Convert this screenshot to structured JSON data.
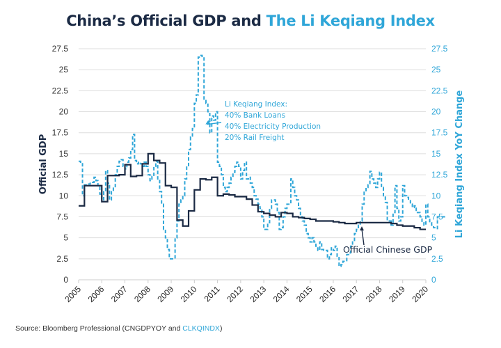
{
  "title": {
    "part1": "China’s Official GDP and ",
    "part2": "The Li Keqiang Index"
  },
  "source": {
    "prefix": "Source: Bloomberg Professional (CNGDPYOY and ",
    "highlight": "CLKQINDX",
    "suffix": ")"
  },
  "colors": {
    "gdp": "#1b2a44",
    "lki": "#2fa6d8",
    "grid": "#dddddd"
  },
  "chart_data": {
    "type": "line",
    "title": "China’s Official GDP and The Li Keqiang Index",
    "xlabel": "",
    "ylabel": "Official GDP",
    "ylabel_right": "Li Keqiang Index YoY Change",
    "xlim": [
      2005,
      2020
    ],
    "ylim": [
      0,
      27.5
    ],
    "ylim_right": [
      0,
      27.5
    ],
    "grid": true,
    "x_ticks": [
      "2005",
      "2006",
      "2007",
      "2008",
      "2009",
      "2010",
      "2011",
      "2012",
      "2013",
      "2014",
      "2015",
      "2016",
      "2017",
      "2018",
      "2019",
      "2020"
    ],
    "y_ticks": [
      "0",
      "2.5",
      "5",
      "7.5",
      "10",
      "12.5",
      "15",
      "17.5",
      "20",
      "22.5",
      "25",
      "27.5"
    ],
    "y_ticks_right": [
      "0",
      "2.5",
      "5",
      "7.5",
      "10",
      "12.5",
      "15",
      "17.5",
      "20",
      "22.5",
      "25",
      "27.5"
    ],
    "annotations": [
      {
        "id": "lki",
        "lines": [
          "Li Keqiang Index:",
          "40% Bank Loans",
          "40% Electricity Production",
          "20% Rail Freight"
        ],
        "points_to": [
          2010.3,
          18.5
        ]
      },
      {
        "id": "gdp",
        "lines": [
          "Official Chinese GDP"
        ],
        "points_to": [
          2016.5,
          6.7
        ]
      }
    ],
    "series": [
      {
        "name": "Official GDP",
        "style": "solid-step",
        "axis": "left",
        "x": [
          2005.0,
          2005.25,
          2005.5,
          2005.75,
          2006.0,
          2006.25,
          2006.5,
          2006.75,
          2007.0,
          2007.25,
          2007.5,
          2007.75,
          2008.0,
          2008.25,
          2008.5,
          2008.75,
          2009.0,
          2009.25,
          2009.5,
          2009.75,
          2010.0,
          2010.25,
          2010.5,
          2010.75,
          2011.0,
          2011.25,
          2011.5,
          2011.75,
          2012.0,
          2012.25,
          2012.5,
          2012.75,
          2013.0,
          2013.25,
          2013.5,
          2013.75,
          2014.0,
          2014.25,
          2014.5,
          2014.75,
          2015.0,
          2015.25,
          2015.5,
          2015.75,
          2016.0,
          2016.25,
          2016.5,
          2016.75,
          2017.0,
          2017.25,
          2017.5,
          2017.75,
          2018.0,
          2018.25,
          2018.5,
          2018.75,
          2019.0,
          2019.25,
          2019.5,
          2019.75,
          2020.0
        ],
        "values": [
          8.8,
          11.2,
          11.2,
          11.2,
          9.3,
          12.4,
          12.4,
          12.5,
          13.7,
          12.3,
          12.4,
          13.8,
          15.0,
          14.2,
          13.9,
          11.2,
          11.0,
          7.1,
          6.4,
          8.2,
          10.7,
          12.0,
          11.9,
          12.2,
          10.0,
          10.2,
          10.1,
          9.9,
          9.9,
          9.6,
          8.9,
          8.1,
          7.9,
          7.7,
          7.5,
          8.0,
          7.9,
          7.5,
          7.4,
          7.3,
          7.2,
          7.0,
          7.0,
          7.0,
          6.9,
          6.8,
          6.7,
          6.7,
          6.8,
          6.8,
          6.8,
          6.8,
          6.8,
          6.8,
          6.7,
          6.5,
          6.4,
          6.4,
          6.2,
          6.0,
          6.0
        ]
      },
      {
        "name": "Li Keqiang Index",
        "style": "dashed-step",
        "axis": "right",
        "x_start": 2005.0,
        "x_step_months": 1,
        "values": [
          14.1,
          14.0,
          10.0,
          11.3,
          11.4,
          11.4,
          11.6,
          11.6,
          12.2,
          11.8,
          11.2,
          10.2,
          9.5,
          10.5,
          13.0,
          11.5,
          9.5,
          10.5,
          11.0,
          12.5,
          13.5,
          14.1,
          14.3,
          13.5,
          13.2,
          14.0,
          14.5,
          15.5,
          17.3,
          14.2,
          13.8,
          14.0,
          13.8,
          13.5,
          14.0,
          13.5,
          12.5,
          11.8,
          12.3,
          13.5,
          14.1,
          12.0,
          10.5,
          9.0,
          6.0,
          5.0,
          3.6,
          2.5,
          2.5,
          2.5,
          5.0,
          7.0,
          9.0,
          9.5,
          10.0,
          12.0,
          13.5,
          15.5,
          17.0,
          18.0,
          21.0,
          22.0,
          26.5,
          26.7,
          26.5,
          21.5,
          21.0,
          20.0,
          17.5,
          19.5,
          19.0,
          20.0,
          14.0,
          13.5,
          12.5,
          11.0,
          10.5,
          11.0,
          11.5,
          12.2,
          12.8,
          13.5,
          14.0,
          13.5,
          12.0,
          13.0,
          14.0,
          12.0,
          12.2,
          11.5,
          11.0,
          10.0,
          9.6,
          9.0,
          8.5,
          7.5,
          6.0,
          6.0,
          6.8,
          8.5,
          9.5,
          9.5,
          9.0,
          8.0,
          6.0,
          6.2,
          7.5,
          8.5,
          9.0,
          9.0,
          12.0,
          11.0,
          10.0,
          9.5,
          8.5,
          7.5,
          7.0,
          6.5,
          5.5,
          5.0,
          4.5,
          5.0,
          4.5,
          4.0,
          3.5,
          4.5,
          3.6,
          3.5,
          3.5,
          2.5,
          3.0,
          3.8,
          3.5,
          4.0,
          2.8,
          1.6,
          1.8,
          2.2,
          2.2,
          3.0,
          3.2,
          4.0,
          4.5,
          5.5,
          6.0,
          6.5,
          7.0,
          9.0,
          10.5,
          11.0,
          11.3,
          12.9,
          12.0,
          11.5,
          11.0,
          12.0,
          12.8,
          11.0,
          10.0,
          9.2,
          7.0,
          7.0,
          6.5,
          8.0,
          11.2,
          8.5,
          7.0,
          7.5,
          11.2,
          10.0,
          9.8,
          9.5,
          9.0,
          8.6,
          8.8,
          8.0,
          8.0,
          7.5,
          6.8,
          6.5,
          9.0,
          7.5,
          6.8,
          6.5,
          6.2,
          6.1,
          7.5,
          7.5,
          7.5,
          7.5,
          7.5
        ]
      }
    ]
  }
}
